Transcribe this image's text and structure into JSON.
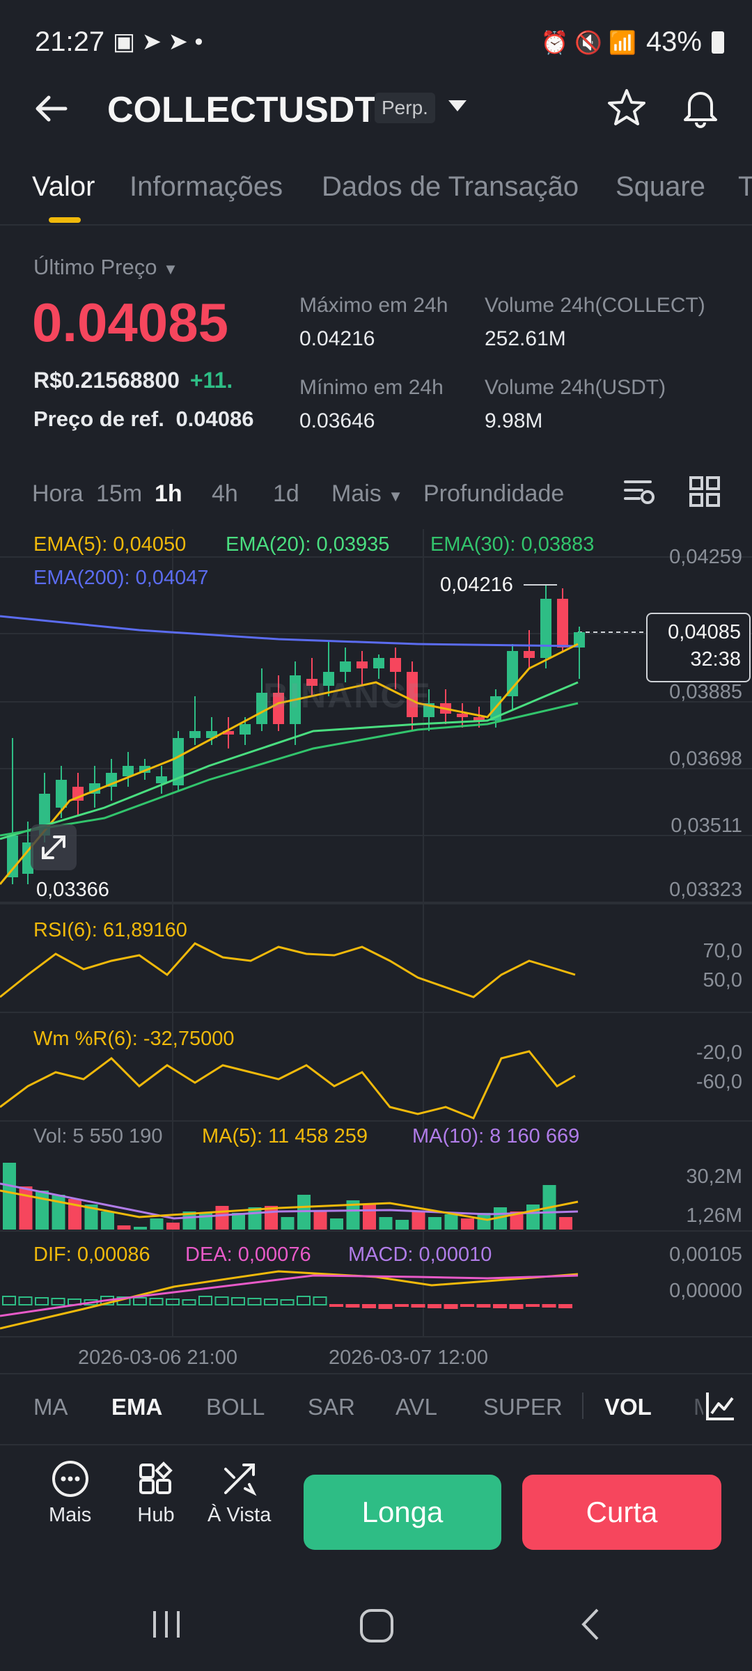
{
  "status": {
    "time": "21:27",
    "battery": "43%"
  },
  "header": {
    "title": "COLLECTUSDT",
    "badge": "Perp."
  },
  "tabs": [
    "Valor",
    "Informações",
    "Dados de Transação",
    "Square",
    "T"
  ],
  "price": {
    "last_label": "Último Preço",
    "last_price": "0.04085",
    "fiat": "R$0.21568800",
    "change": "+11.",
    "ref_label": "Preço de ref.",
    "ref_value": "0.04086"
  },
  "stats": {
    "high_label": "Máximo em 24h",
    "high_value": "0.04216",
    "low_label": "Mínimo em 24h",
    "low_value": "0.03646",
    "vol_coin_label": "Volume 24h(COLLECT)",
    "vol_coin_value": "252.61M",
    "vol_usdt_label": "Volume 24h(USDT)",
    "vol_usdt_value": "9.98M"
  },
  "intervals": [
    "Hora",
    "15m",
    "1h",
    "4h",
    "1d",
    "Mais",
    "Profundidade"
  ],
  "indicators": {
    "ema5": "EMA(5): 0,04050",
    "ema20": "EMA(20): 0,03935",
    "ema30": "EMA(30): 0,03883",
    "ema200": "EMA(200): 0,04047",
    "rsi": "RSI(6): 61,89160",
    "wmr": "Wm %R(6): -32,75000",
    "vol": "Vol: 5 550 190",
    "ma5": "MA(5): 11 458 259",
    "ma10": "MA(10): 8 160 669",
    "dif": "DIF: 0,00086",
    "dea": "DEA: 0,00076",
    "macd": "MACD: 0,00010"
  },
  "price_axis": [
    "0,04259",
    "0,03885",
    "0,03698",
    "0,03511",
    "0,03323"
  ],
  "current_price_tag": {
    "price": "0,04085",
    "countdown": "32:38"
  },
  "high_marker": "0,04216",
  "low_marker": "0,03366",
  "rsi_axis": [
    "70,0",
    "50,0"
  ],
  "wmr_axis": [
    "-20,0",
    "-60,0"
  ],
  "vol_axis": [
    "30,2M",
    "1,26M"
  ],
  "macd_axis": [
    "0,00105",
    "0,00000"
  ],
  "time_axis": [
    "2026-03-06 21:00",
    "2026-03-07 12:00"
  ],
  "watermark": "BINANCE",
  "indicator_tabs": [
    "MA",
    "EMA",
    "BOLL",
    "SAR",
    "AVL",
    "SUPER",
    "VOL",
    "M"
  ],
  "actions": {
    "more": "Mais",
    "hub": "Hub",
    "spot": "À Vista",
    "long": "Longa",
    "short": "Curta"
  },
  "colors": {
    "up": "#2ebd85",
    "down": "#f6465d",
    "accent": "#f0b90b",
    "ema200": "#5b6cf0",
    "ema20": "#4ade80",
    "ema30": "#32c46c"
  }
}
